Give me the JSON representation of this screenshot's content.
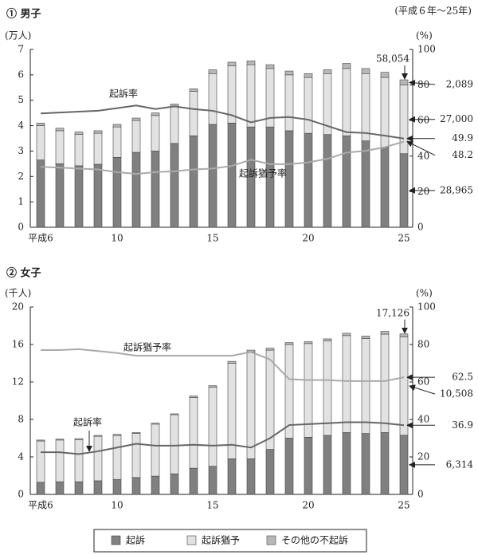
{
  "chart_data": [
    {
      "type": "bar",
      "stacked": true,
      "title": "① 男子",
      "subtitle": "(平成６年～25年)",
      "ylabel": "(万人)",
      "y2label": "(%)",
      "categories": [
        "平成6",
        null,
        null,
        null,
        "10",
        null,
        null,
        null,
        null,
        "15",
        null,
        null,
        null,
        null,
        "20",
        null,
        null,
        null,
        null,
        "25"
      ],
      "ylim": [
        0,
        7
      ],
      "yticks": [
        0,
        1,
        2,
        3,
        4,
        5,
        6,
        7
      ],
      "y2lim": [
        0,
        100
      ],
      "y2ticks": [
        0,
        20,
        40,
        60,
        80,
        100
      ],
      "total_label": "58,054",
      "series": [
        {
          "name": "起訴",
          "type": "bar",
          "color": "#808080",
          "values": [
            2.65,
            2.5,
            2.42,
            2.48,
            2.75,
            2.95,
            3.0,
            3.3,
            3.6,
            4.05,
            4.1,
            3.95,
            3.95,
            3.8,
            3.7,
            3.65,
            3.6,
            3.4,
            3.15,
            2.8965
          ],
          "value_labels": [
            null,
            null,
            null,
            null,
            null,
            null,
            null,
            null,
            null,
            null,
            null,
            null,
            null,
            null,
            null,
            null,
            null,
            null,
            null,
            "28,965"
          ]
        },
        {
          "name": "起訴猶予",
          "type": "bar",
          "color": "#e2e2e2",
          "values": [
            1.35,
            1.3,
            1.23,
            1.22,
            1.2,
            1.25,
            1.4,
            1.45,
            1.75,
            2.0,
            2.25,
            2.45,
            2.3,
            2.2,
            2.2,
            2.4,
            2.65,
            2.65,
            2.75,
            2.7
          ],
          "value_labels": [
            null,
            null,
            null,
            null,
            null,
            null,
            null,
            null,
            null,
            null,
            null,
            null,
            null,
            null,
            null,
            null,
            null,
            null,
            null,
            "27,000"
          ]
        },
        {
          "name": "その他の不起訴",
          "type": "bar",
          "color": "#b8b8b8",
          "values": [
            0.1,
            0.1,
            0.1,
            0.1,
            0.1,
            0.1,
            0.1,
            0.1,
            0.1,
            0.15,
            0.15,
            0.15,
            0.15,
            0.15,
            0.15,
            0.15,
            0.2,
            0.2,
            0.2,
            0.2089
          ],
          "value_labels": [
            null,
            null,
            null,
            null,
            null,
            null,
            null,
            null,
            null,
            null,
            null,
            null,
            null,
            null,
            null,
            null,
            null,
            null,
            null,
            "2,089"
          ]
        },
        {
          "name": "起訴率",
          "type": "line",
          "axis": "y2",
          "color": "#666666",
          "values": [
            64,
            64.5,
            65,
            65.5,
            67,
            68.5,
            66.5,
            68,
            66.5,
            65.5,
            63,
            59,
            61.5,
            62,
            60.5,
            57,
            53.5,
            53,
            51.5,
            49.9
          ]
        },
        {
          "name": "起訴猶予率",
          "type": "line",
          "axis": "y2",
          "color": "#aaaaaa",
          "values": [
            34,
            33.5,
            33,
            32.5,
            31,
            30,
            31,
            31.5,
            32.5,
            33,
            34.5,
            38,
            35.5,
            35.5,
            36.5,
            38.5,
            42,
            43,
            45,
            48.2
          ]
        }
      ]
    },
    {
      "type": "bar",
      "stacked": true,
      "title": "② 女子",
      "ylabel": "(千人)",
      "y2label": "(%)",
      "categories": [
        "平成6",
        null,
        null,
        null,
        "10",
        null,
        null,
        null,
        null,
        "15",
        null,
        null,
        null,
        null,
        "20",
        null,
        null,
        null,
        null,
        "25"
      ],
      "ylim": [
        0,
        20
      ],
      "yticks": [
        0,
        4,
        8,
        12,
        16,
        20
      ],
      "y2lim": [
        0,
        100
      ],
      "y2ticks": [
        0,
        20,
        40,
        60,
        80,
        100
      ],
      "total_label": "17,126",
      "series": [
        {
          "name": "起訴",
          "type": "bar",
          "color": "#808080",
          "values": [
            1.3,
            1.35,
            1.35,
            1.45,
            1.6,
            1.8,
            1.95,
            2.2,
            2.8,
            3.0,
            3.8,
            3.8,
            4.8,
            6.0,
            6.1,
            6.3,
            6.6,
            6.5,
            6.6,
            6.314
          ],
          "value_labels": [
            null,
            null,
            null,
            null,
            null,
            null,
            null,
            null,
            null,
            null,
            null,
            null,
            null,
            null,
            null,
            null,
            null,
            null,
            null,
            "6,314"
          ]
        },
        {
          "name": "起訴猶予",
          "type": "bar",
          "color": "#e2e2e2",
          "values": [
            4.4,
            4.45,
            4.5,
            4.75,
            4.7,
            4.7,
            5.55,
            6.3,
            7.55,
            8.45,
            10.2,
            11.4,
            10.6,
            10.0,
            10.0,
            10.1,
            10.35,
            10.15,
            10.5,
            10.508
          ],
          "value_labels": [
            null,
            null,
            null,
            null,
            null,
            null,
            null,
            null,
            null,
            null,
            null,
            null,
            null,
            null,
            null,
            null,
            null,
            null,
            null,
            "10,508"
          ]
        },
        {
          "name": "その他の不起訴",
          "type": "bar",
          "color": "#b8b8b8",
          "values": [
            0.1,
            0.1,
            0.1,
            0.1,
            0.1,
            0.1,
            0.1,
            0.1,
            0.15,
            0.15,
            0.2,
            0.2,
            0.2,
            0.2,
            0.2,
            0.2,
            0.25,
            0.25,
            0.3,
            0.304
          ]
        },
        {
          "name": "起訴猶予率",
          "type": "line",
          "axis": "y2",
          "color": "#aaaaaa",
          "values": [
            77,
            77,
            77.5,
            76.5,
            75.5,
            74,
            74,
            74,
            74,
            74,
            74,
            76,
            72,
            61.5,
            61,
            61,
            60.5,
            60.5,
            60.5,
            62.5
          ]
        },
        {
          "name": "起訴率",
          "type": "line",
          "axis": "y2",
          "color": "#666666",
          "values": [
            22.5,
            22.5,
            21.5,
            23,
            25,
            27,
            26,
            26,
            26.5,
            26,
            26.5,
            25,
            30,
            37,
            37.5,
            38,
            38.5,
            38.5,
            38,
            36.9
          ]
        }
      ]
    }
  ]
}
